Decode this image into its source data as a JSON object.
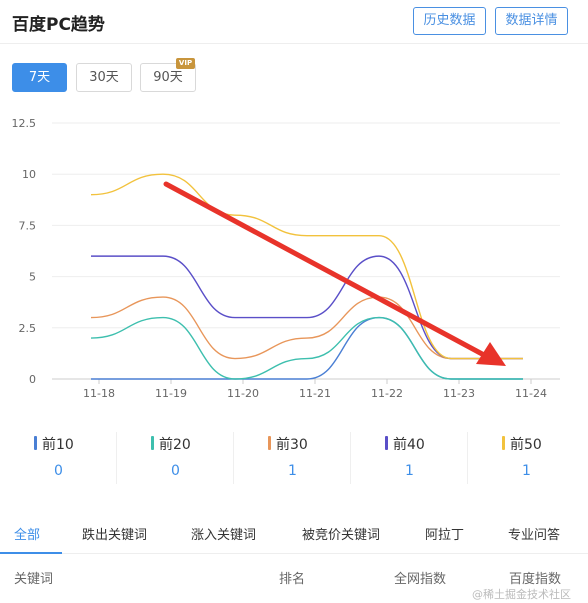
{
  "header": {
    "title": "百度PC趋势",
    "history_button": "历史数据",
    "details_button": "数据详情"
  },
  "range_buttons": {
    "days7": "7天",
    "days30": "30天",
    "days90": "90天",
    "vip_badge": "VIP"
  },
  "chart_data": {
    "type": "line",
    "categories": [
      "11-18",
      "11-19",
      "11-20",
      "11-21",
      "11-22",
      "11-23",
      "11-24"
    ],
    "y_ticks": [
      "0",
      "2.5",
      "5",
      "7.5",
      "10",
      "12.5"
    ],
    "ylim": [
      0,
      12.5
    ],
    "grid": true,
    "title": "",
    "xlabel": "",
    "ylabel": "",
    "series": [
      {
        "name": "前10",
        "color": "#4a7fd4",
        "values": [
          0,
          0,
          0,
          0,
          3,
          0,
          0
        ]
      },
      {
        "name": "前20",
        "color": "#3dbfae",
        "values": [
          2,
          3,
          0,
          1,
          3,
          0,
          0
        ]
      },
      {
        "name": "前30",
        "color": "#e8965a",
        "values": [
          3,
          4,
          1,
          2,
          4,
          1,
          1
        ]
      },
      {
        "name": "前40",
        "color": "#5a4fc8",
        "values": [
          6,
          6,
          3,
          3,
          6,
          1,
          1
        ]
      },
      {
        "name": "前50",
        "color": "#f2c23d",
        "values": [
          9,
          10,
          8,
          7,
          7,
          1,
          1
        ]
      }
    ],
    "annotation": {
      "type": "arrow",
      "color": "#e8332a"
    }
  },
  "legend": [
    {
      "label": "前10",
      "value": "0",
      "color": "#4a7fd4"
    },
    {
      "label": "前20",
      "value": "0",
      "color": "#3dbfae"
    },
    {
      "label": "前30",
      "value": "1",
      "color": "#e8965a"
    },
    {
      "label": "前40",
      "value": "1",
      "color": "#5a4fc8"
    },
    {
      "label": "前50",
      "value": "1",
      "color": "#f2c23d"
    }
  ],
  "tabs": [
    "全部",
    "跌出关键词",
    "涨入关键词",
    "被竞价关键词",
    "阿拉丁",
    "专业问答"
  ],
  "table_header": {
    "keyword": "关键词",
    "rank": "排名",
    "network_index": "全网指数",
    "baidu_index": "百度指数"
  },
  "watermark": "@稀土掘金技术社区"
}
